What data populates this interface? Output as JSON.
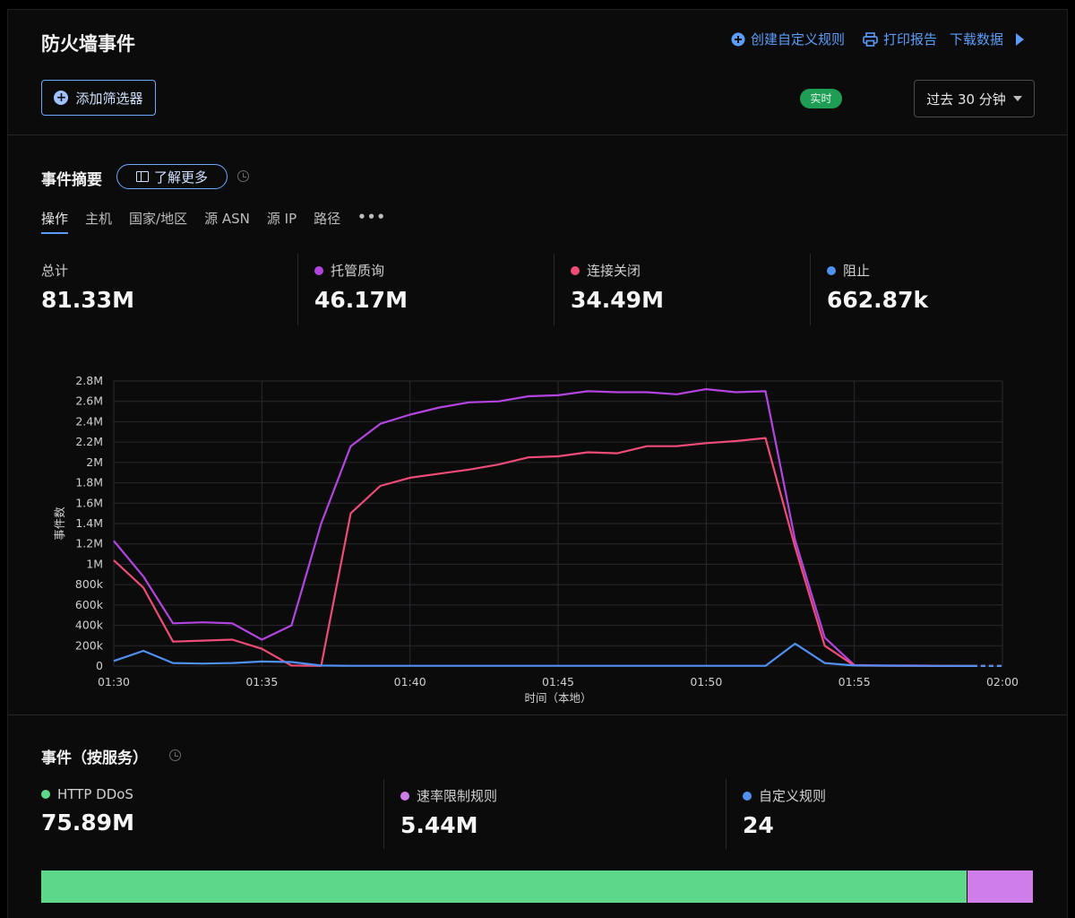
{
  "header": {
    "title": "防火墙事件",
    "create_rule": "创建自定义规则",
    "print_report": "打印报告",
    "download_data": "下载数据",
    "add_filter": "添加筛选器",
    "live_badge": "实时",
    "time_range": "过去 30 分钟"
  },
  "summary": {
    "title": "事件摘要",
    "learn_more": "了解更多",
    "tabs": [
      "操作",
      "主机",
      "国家/地区",
      "源 ASN",
      "源 IP",
      "路径"
    ],
    "more": "•••",
    "stats": [
      {
        "label": "总计",
        "value": "81.33M",
        "color": ""
      },
      {
        "label": "托管质询",
        "value": "46.17M",
        "color": "#b444e0"
      },
      {
        "label": "连接关闭",
        "value": "34.49M",
        "color": "#ee4c77"
      },
      {
        "label": "阻止",
        "value": "662.87k",
        "color": "#4f90f0"
      }
    ]
  },
  "chart_data": {
    "type": "line",
    "ylabel": "事件数",
    "xlabel": "时间（本地）",
    "x": [
      0,
      1,
      2,
      3,
      4,
      5,
      6,
      7,
      8,
      9,
      10,
      11,
      12,
      13,
      14,
      15,
      16,
      17,
      18,
      19,
      20,
      21,
      22,
      23,
      24,
      25,
      26,
      27,
      28,
      29,
      30
    ],
    "x_ticks": [
      {
        "at": 0,
        "label": "01:30"
      },
      {
        "at": 5,
        "label": "01:35"
      },
      {
        "at": 10,
        "label": "01:40"
      },
      {
        "at": 15,
        "label": "01:45"
      },
      {
        "at": 20,
        "label": "01:50"
      },
      {
        "at": 25,
        "label": "01:55"
      },
      {
        "at": 30,
        "label": "02:00"
      }
    ],
    "y_ticks": [
      {
        "v": 0,
        "label": "0"
      },
      {
        "v": 200000,
        "label": "200k"
      },
      {
        "v": 400000,
        "label": "400k"
      },
      {
        "v": 600000,
        "label": "600k"
      },
      {
        "v": 800000,
        "label": "800k"
      },
      {
        "v": 1000000,
        "label": "1M"
      },
      {
        "v": 1200000,
        "label": "1.2M"
      },
      {
        "v": 1400000,
        "label": "1.4M"
      },
      {
        "v": 1600000,
        "label": "1.6M"
      },
      {
        "v": 1800000,
        "label": "1.8M"
      },
      {
        "v": 2000000,
        "label": "2M"
      },
      {
        "v": 2200000,
        "label": "2.2M"
      },
      {
        "v": 2400000,
        "label": "2.4M"
      },
      {
        "v": 2600000,
        "label": "2.6M"
      },
      {
        "v": 2800000,
        "label": "2.8M"
      }
    ],
    "ylim": [
      0,
      2800000
    ],
    "grid": true,
    "series": [
      {
        "name": "托管质询",
        "color": "#b444e0",
        "values": [
          1230000,
          880000,
          420000,
          430000,
          420000,
          260000,
          400000,
          1400000,
          2160000,
          2380000,
          2470000,
          2540000,
          2590000,
          2600000,
          2650000,
          2660000,
          2700000,
          2690000,
          2690000,
          2670000,
          2720000,
          2690000,
          2700000,
          1240000,
          280000,
          10000,
          5000,
          5000,
          3000,
          2000,
          2000
        ]
      },
      {
        "name": "连接关闭",
        "color": "#ee4c77",
        "values": [
          1040000,
          770000,
          240000,
          250000,
          260000,
          170000,
          5000,
          2000,
          1500000,
          1770000,
          1850000,
          1890000,
          1930000,
          1980000,
          2050000,
          2060000,
          2100000,
          2090000,
          2160000,
          2160000,
          2190000,
          2210000,
          2240000,
          1170000,
          200000,
          5000,
          3000,
          2000,
          2000,
          2000,
          2000
        ]
      },
      {
        "name": "阻止",
        "color": "#4f90f0",
        "values": [
          50000,
          150000,
          30000,
          25000,
          30000,
          45000,
          40000,
          5000,
          3000,
          3000,
          3000,
          3000,
          3000,
          3000,
          3000,
          3000,
          3000,
          3000,
          3000,
          3000,
          3000,
          3000,
          3000,
          220000,
          30000,
          5000,
          4000,
          3000,
          2000,
          1000,
          1000
        ]
      }
    ]
  },
  "services": {
    "title": "事件（按服务）",
    "stats": [
      {
        "label": "HTTP DDoS",
        "value": "75.89M",
        "color": "#5dd88a",
        "share": 0.9331
      },
      {
        "label": "速率限制规则",
        "value": "5.44M",
        "color": "#cf7de8",
        "share": 0.0669
      },
      {
        "label": "自定义规则",
        "value": "24",
        "color": "#4f90f0",
        "share": 3e-07
      }
    ]
  }
}
